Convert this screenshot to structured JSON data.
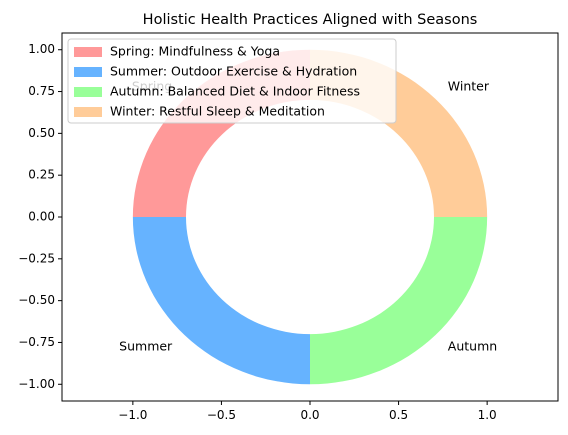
{
  "chart_data": {
    "type": "pie",
    "style": "donut",
    "title": "Holistic Health Practices Aligned with Seasons",
    "slices": [
      {
        "label": "Spring",
        "value": 25,
        "color": "#ff9999",
        "legend": "Spring: Mindfulness & Yoga"
      },
      {
        "label": "Summer",
        "value": 25,
        "color": "#66b3ff",
        "legend": "Summer: Outdoor Exercise & Hydration"
      },
      {
        "label": "Autumn",
        "value": 25,
        "color": "#99ff99",
        "legend": "Autumn: Balanced Diet & Indoor Fitness"
      },
      {
        "label": "Winter",
        "value": 25,
        "color": "#ffcc99",
        "legend": "Winter: Restful Sleep & Meditation"
      }
    ],
    "start_angle_deg": 90,
    "inner_radius_fraction": 0.7,
    "xlim": [
      -1.4,
      1.4
    ],
    "ylim": [
      -1.1,
      1.1
    ],
    "xticks": [
      "−1.0",
      "−0.5",
      "0.0",
      "0.5",
      "1.0"
    ],
    "xtick_values": [
      -1.0,
      -0.5,
      0.0,
      0.5,
      1.0
    ],
    "yticks": [
      "1.00",
      "0.75",
      "0.50",
      "0.25",
      "0.00",
      "−0.25",
      "−0.50",
      "−0.75",
      "−1.00"
    ],
    "ytick_values": [
      1.0,
      0.75,
      0.5,
      0.25,
      0.0,
      -0.25,
      -0.5,
      -0.75,
      -1.0
    ],
    "legend_position": "upper-left",
    "grid": false
  }
}
